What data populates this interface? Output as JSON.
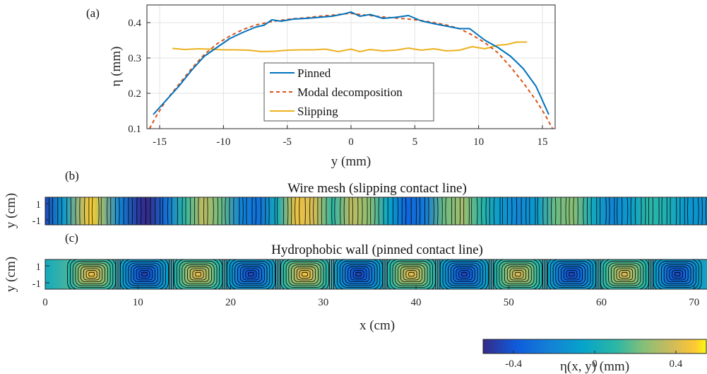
{
  "panel_a": {
    "label": "(a)",
    "xlabel": "y (mm)",
    "ylabel": "η (mm)",
    "xticks": [
      "-15",
      "-10",
      "-5",
      "0",
      "5",
      "10",
      "15"
    ],
    "yticks": [
      "0.1",
      "0.2",
      "0.3",
      "0.4"
    ]
  },
  "panel_b": {
    "label": "(b)",
    "title": "Wire mesh (slipping contact line)",
    "ylabel": "y (cm)",
    "yticks": [
      "1",
      "-1"
    ]
  },
  "panel_c": {
    "label": "(c)",
    "title": "Hydrophobic wall (pinned contact line)",
    "ylabel": "y (cm)",
    "yticks": [
      "1",
      "-1"
    ],
    "xlabel": "x (cm)",
    "xticks": [
      "0",
      "10",
      "20",
      "30",
      "40",
      "50",
      "60",
      "70"
    ]
  },
  "colorbar": {
    "label": "η(x, y) (mm)",
    "ticks": [
      "-0.4",
      "0",
      "0.4"
    ],
    "range": [
      -0.55,
      0.55
    ]
  },
  "chart_data": [
    {
      "type": "line",
      "panel": "a",
      "xlabel": "y (mm)",
      "ylabel": "η (mm)",
      "xlim": [
        -16,
        16
      ],
      "ylim": [
        0.1,
        0.45
      ],
      "grid": true,
      "legend_position": "bottom-center",
      "series": [
        {
          "name": "Pinned",
          "color": "#0072BD",
          "style": "solid",
          "x": [
            -15.5,
            -14.5,
            -13.5,
            -12.5,
            -11.5,
            -10.5,
            -9.5,
            -8.5,
            -7.5,
            -6.8,
            -6.2,
            -5.5,
            -4.5,
            -3.5,
            -2.5,
            -1.5,
            -0.5,
            0,
            0.7,
            1.5,
            2.5,
            3.5,
            4.5,
            5.5,
            6.5,
            7.5,
            8.5,
            9.3,
            10.5,
            11.5,
            12.5,
            13.5,
            14.5,
            15.5
          ],
          "y": [
            0.14,
            0.18,
            0.22,
            0.265,
            0.305,
            0.33,
            0.355,
            0.372,
            0.387,
            0.393,
            0.408,
            0.404,
            0.41,
            0.412,
            0.415,
            0.418,
            0.425,
            0.43,
            0.418,
            0.423,
            0.412,
            0.415,
            0.42,
            0.405,
            0.397,
            0.39,
            0.383,
            0.383,
            0.35,
            0.33,
            0.305,
            0.27,
            0.22,
            0.14
          ]
        },
        {
          "name": "Modal decomposition",
          "color": "#D95319",
          "style": "dashed",
          "x": [
            -15.8,
            -15.2,
            -14.5,
            -13.5,
            -12.5,
            -11.5,
            -10.5,
            -9.5,
            -8.5,
            -7.5,
            -6.5,
            -5.5,
            -4.5,
            -3.5,
            -2.5,
            -1.5,
            -0.5,
            0,
            0.5,
            1.5,
            2.5,
            3.5,
            4.5,
            5.5,
            6.5,
            7.5,
            8.5,
            9.5,
            10.5,
            11.5,
            12.5,
            13.5,
            14.5,
            15.2,
            15.8
          ],
          "y": [
            0.1,
            0.14,
            0.18,
            0.225,
            0.27,
            0.31,
            0.34,
            0.362,
            0.38,
            0.393,
            0.401,
            0.407,
            0.411,
            0.414,
            0.418,
            0.421,
            0.425,
            0.426,
            0.424,
            0.42,
            0.416,
            0.413,
            0.41,
            0.406,
            0.4,
            0.393,
            0.383,
            0.365,
            0.343,
            0.315,
            0.275,
            0.23,
            0.18,
            0.14,
            0.1
          ]
        },
        {
          "name": "Slipping",
          "color": "#EDB120",
          "style": "solid",
          "x": [
            -14,
            -13,
            -12,
            -11,
            -10,
            -9,
            -8,
            -7,
            -6,
            -5,
            -4,
            -3,
            -2,
            -1,
            0,
            0.7,
            1.5,
            2.5,
            3.5,
            4.5,
            5.5,
            6.5,
            7.5,
            8.5,
            9.5,
            10.5,
            11.5,
            12.2,
            13,
            13.8
          ],
          "y": [
            0.327,
            0.324,
            0.326,
            0.325,
            0.323,
            0.323,
            0.322,
            0.318,
            0.319,
            0.322,
            0.323,
            0.323,
            0.325,
            0.318,
            0.325,
            0.318,
            0.324,
            0.32,
            0.322,
            0.328,
            0.322,
            0.326,
            0.32,
            0.322,
            0.332,
            0.326,
            0.336,
            0.338,
            0.345,
            0.345
          ]
        }
      ]
    },
    {
      "type": "heatmap",
      "panel": "b",
      "title": "Wire mesh (slipping contact line)",
      "ylabel": "y (cm)",
      "xlim": [
        0,
        72
      ],
      "ylim": [
        -1.5,
        1.5
      ],
      "value_range": [
        -0.55,
        0.55
      ],
      "pattern": "mostly uniform in y, varying along x",
      "x_samples": [
        0,
        2,
        4,
        5,
        6,
        8,
        10,
        11,
        13,
        15,
        17,
        19,
        21,
        23,
        25,
        27,
        29,
        31,
        33,
        35,
        37,
        39,
        41,
        43,
        45,
        47,
        49,
        51,
        53,
        55,
        57,
        59,
        61,
        63,
        65,
        67,
        69,
        71,
        72
      ],
      "eta_mm": [
        -0.45,
        -0.1,
        0.35,
        0.5,
        0.3,
        -0.2,
        -0.5,
        -0.55,
        -0.3,
        0.1,
        0.35,
        0.2,
        -0.2,
        -0.3,
        0.0,
        0.45,
        0.4,
        0.1,
        0.35,
        0.25,
        -0.05,
        -0.35,
        -0.25,
        0.2,
        0.3,
        0.1,
        -0.1,
        -0.2,
        -0.1,
        0.2,
        0.25,
        0.0,
        -0.2,
        -0.1,
        0.1,
        0.05,
        -0.1,
        -0.15,
        -0.1
      ]
    },
    {
      "type": "heatmap",
      "panel": "c",
      "title": "Hydrophobic wall (pinned contact line)",
      "xlabel": "x (cm)",
      "ylabel": "y (cm)",
      "xlim": [
        0,
        72
      ],
      "ylim": [
        -1.5,
        1.5
      ],
      "value_range": [
        -0.55,
        0.55
      ],
      "pattern": "alternating cells with concentric contours",
      "cell_centers_x": [
        5.0,
        10.7,
        16.5,
        22.2,
        28.0,
        33.8,
        39.5,
        45.2,
        51.0,
        56.8,
        62.5,
        68.2
      ],
      "cell_peak_eta_mm": [
        0.5,
        -0.52,
        0.48,
        -0.5,
        0.52,
        -0.52,
        0.48,
        -0.5,
        0.45,
        -0.5,
        0.45,
        -0.5
      ]
    }
  ]
}
